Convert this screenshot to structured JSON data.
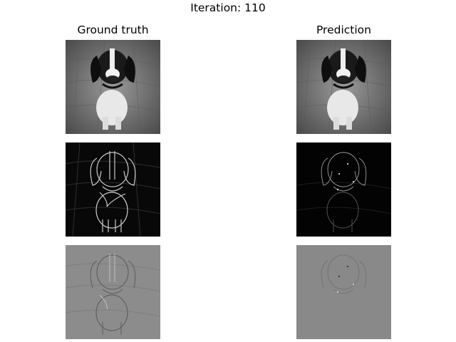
{
  "figure": {
    "title": "Iteration: 110"
  },
  "columns": [
    {
      "title": "Ground truth"
    },
    {
      "title": "Prediction"
    }
  ],
  "rows": [
    {
      "kind": "image",
      "background": "#6e6e6e"
    },
    {
      "kind": "gradient-magnitude",
      "background": "#050505"
    },
    {
      "kind": "signed-gradient",
      "background": "#8a8a8a"
    }
  ],
  "colors": {
    "dog_dark": "#141414",
    "dog_light": "#f0f0f0",
    "edge_gt": "#c8c8c8",
    "edge_pred": "#ffffff"
  }
}
